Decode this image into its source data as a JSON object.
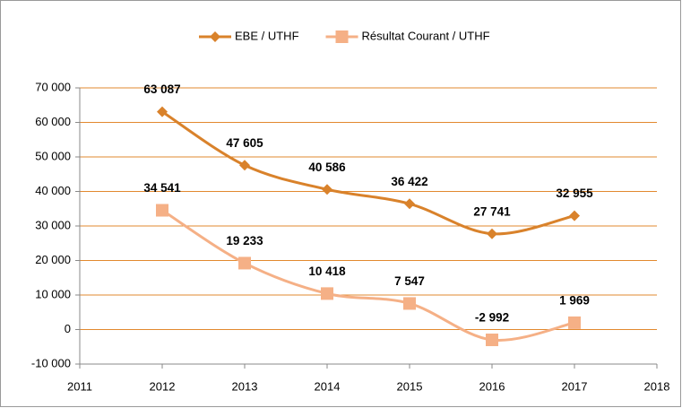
{
  "chart_data": {
    "type": "line",
    "x": [
      2012,
      2013,
      2014,
      2015,
      2016,
      2017
    ],
    "series": [
      {
        "name": "EBE / UTHF",
        "color": "#d9822b",
        "marker": "diamond",
        "values": [
          63087,
          47605,
          40586,
          36422,
          27741,
          32955
        ],
        "value_labels": [
          "63 087",
          "47 605",
          "40 586",
          "36 422",
          "27 741",
          "32 955"
        ]
      },
      {
        "name": "Résultat Courant /  UTHF",
        "color": "#f5b086",
        "marker": "square",
        "values": [
          34541,
          19233,
          10418,
          7547,
          -2992,
          1969
        ],
        "value_labels": [
          "34 541",
          "19 233",
          "10 418",
          "7 547",
          "-2 992",
          "1 969"
        ]
      }
    ],
    "xlim": [
      2011,
      2018
    ],
    "xticks": [
      2011,
      2012,
      2013,
      2014,
      2015,
      2016,
      2017,
      2018
    ],
    "ylim": [
      -10000,
      70000
    ],
    "yticks": [
      {
        "value": -10000,
        "label": "-10 000"
      },
      0,
      {
        "value": 10000,
        "label": "10 000"
      },
      {
        "value": 20000,
        "label": "20 000"
      },
      {
        "value": 30000,
        "label": "30 000"
      },
      {
        "value": 40000,
        "label": "40 000"
      },
      {
        "value": 50000,
        "label": "50 000"
      },
      {
        "value": 60000,
        "label": "60 000"
      },
      {
        "value": 70000,
        "label": "70 000"
      }
    ],
    "grid": true,
    "grid_color": "#e2892f",
    "smooth": true,
    "legend": "top"
  }
}
